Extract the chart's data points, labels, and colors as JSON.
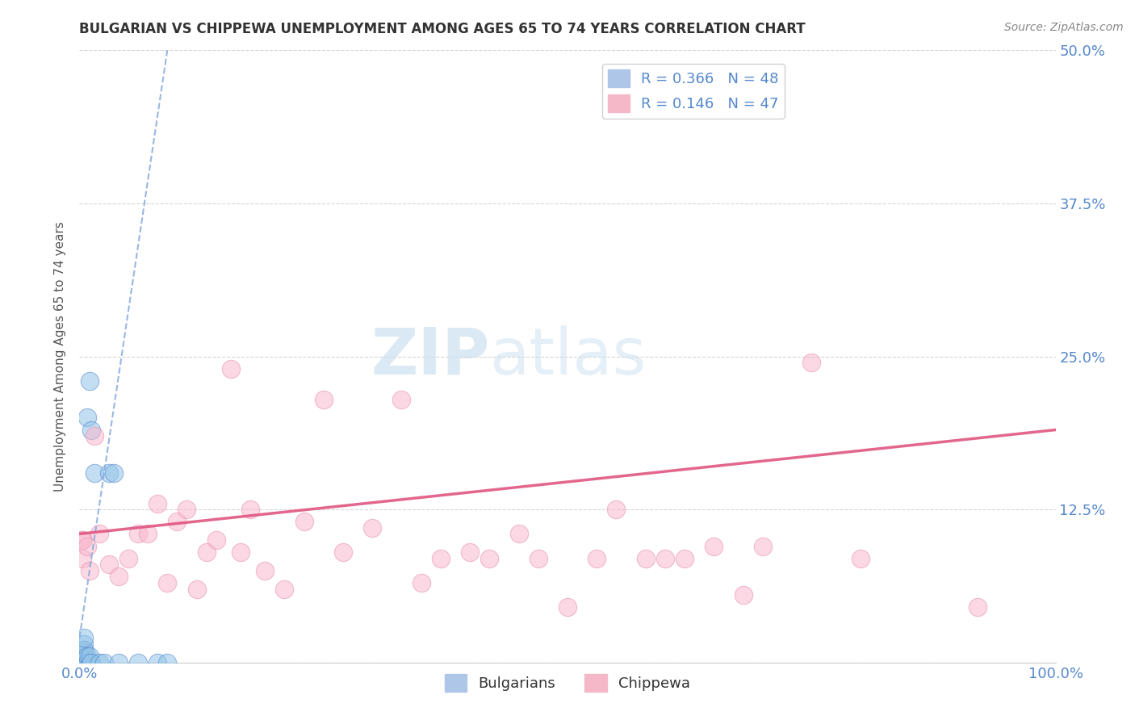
{
  "title": "BULGARIAN VS CHIPPEWA UNEMPLOYMENT AMONG AGES 65 TO 74 YEARS CORRELATION CHART",
  "source": "Source: ZipAtlas.com",
  "ylabel": "Unemployment Among Ages 65 to 74 years",
  "xlim": [
    0.0,
    1.0
  ],
  "ylim": [
    0.0,
    0.5
  ],
  "xticks": [
    0.0,
    1.0
  ],
  "xtick_labels": [
    "0.0%",
    "100.0%"
  ],
  "yticks": [
    0.0,
    0.125,
    0.25,
    0.375,
    0.5
  ],
  "ytick_labels_right": [
    "",
    "12.5%",
    "25.0%",
    "37.5%",
    "50.0%"
  ],
  "bg_color": "#ffffff",
  "grid_color": "#cccccc",
  "bulgarians_x": [
    0.005,
    0.005,
    0.005,
    0.005,
    0.005,
    0.005,
    0.005,
    0.005,
    0.005,
    0.005,
    0.005,
    0.005,
    0.005,
    0.005,
    0.005,
    0.005,
    0.005,
    0.005,
    0.005,
    0.005,
    0.005,
    0.005,
    0.005,
    0.005,
    0.005,
    0.005,
    0.005,
    0.005,
    0.005,
    0.005,
    0.008,
    0.008,
    0.008,
    0.008,
    0.01,
    0.01,
    0.01,
    0.012,
    0.012,
    0.015,
    0.02,
    0.025,
    0.03,
    0.035,
    0.04,
    0.06,
    0.08,
    0.09
  ],
  "bulgarians_y": [
    0.0,
    0.0,
    0.0,
    0.0,
    0.0,
    0.0,
    0.0,
    0.0,
    0.0,
    0.0,
    0.0,
    0.0,
    0.0,
    0.0,
    0.0,
    0.0,
    0.0,
    0.0,
    0.0,
    0.0,
    0.0,
    0.0,
    0.0,
    0.005,
    0.005,
    0.005,
    0.01,
    0.01,
    0.015,
    0.02,
    0.0,
    0.0,
    0.005,
    0.2,
    0.0,
    0.005,
    0.23,
    0.0,
    0.19,
    0.155,
    0.0,
    0.0,
    0.155,
    0.155,
    0.0,
    0.0,
    0.0,
    0.0
  ],
  "chippewa_x": [
    0.003,
    0.003,
    0.003,
    0.008,
    0.01,
    0.015,
    0.02,
    0.03,
    0.04,
    0.05,
    0.06,
    0.07,
    0.08,
    0.09,
    0.1,
    0.11,
    0.12,
    0.13,
    0.14,
    0.155,
    0.165,
    0.175,
    0.19,
    0.21,
    0.23,
    0.25,
    0.27,
    0.3,
    0.33,
    0.35,
    0.37,
    0.4,
    0.42,
    0.45,
    0.47,
    0.5,
    0.53,
    0.55,
    0.58,
    0.6,
    0.62,
    0.65,
    0.68,
    0.7,
    0.75,
    0.8,
    0.92
  ],
  "chippewa_y": [
    0.1,
    0.085,
    0.1,
    0.095,
    0.075,
    0.185,
    0.105,
    0.08,
    0.07,
    0.085,
    0.105,
    0.105,
    0.13,
    0.065,
    0.115,
    0.125,
    0.06,
    0.09,
    0.1,
    0.24,
    0.09,
    0.125,
    0.075,
    0.06,
    0.115,
    0.215,
    0.09,
    0.11,
    0.215,
    0.065,
    0.085,
    0.09,
    0.085,
    0.105,
    0.085,
    0.045,
    0.085,
    0.125,
    0.085,
    0.085,
    0.085,
    0.095,
    0.055,
    0.095,
    0.245,
    0.085,
    0.045
  ],
  "blue_trend_x": [
    0.0,
    0.09
  ],
  "blue_trend_y": [
    0.02,
    0.5
  ],
  "pink_trend_x": [
    0.0,
    1.0
  ],
  "pink_trend_y": [
    0.105,
    0.19
  ],
  "blue_scatter_color": "#93c4e8",
  "blue_scatter_edge": "#5588cc",
  "pink_scatter_color": "#f9b8ce",
  "pink_scatter_edge": "#e890b0",
  "blue_trend_color": "#88aadd",
  "pink_trend_color": "#e05580",
  "tick_color": "#5588cc",
  "title_color": "#333333",
  "source_color": "#888888",
  "ylabel_color": "#555555",
  "watermark_color": "#cce0f0"
}
